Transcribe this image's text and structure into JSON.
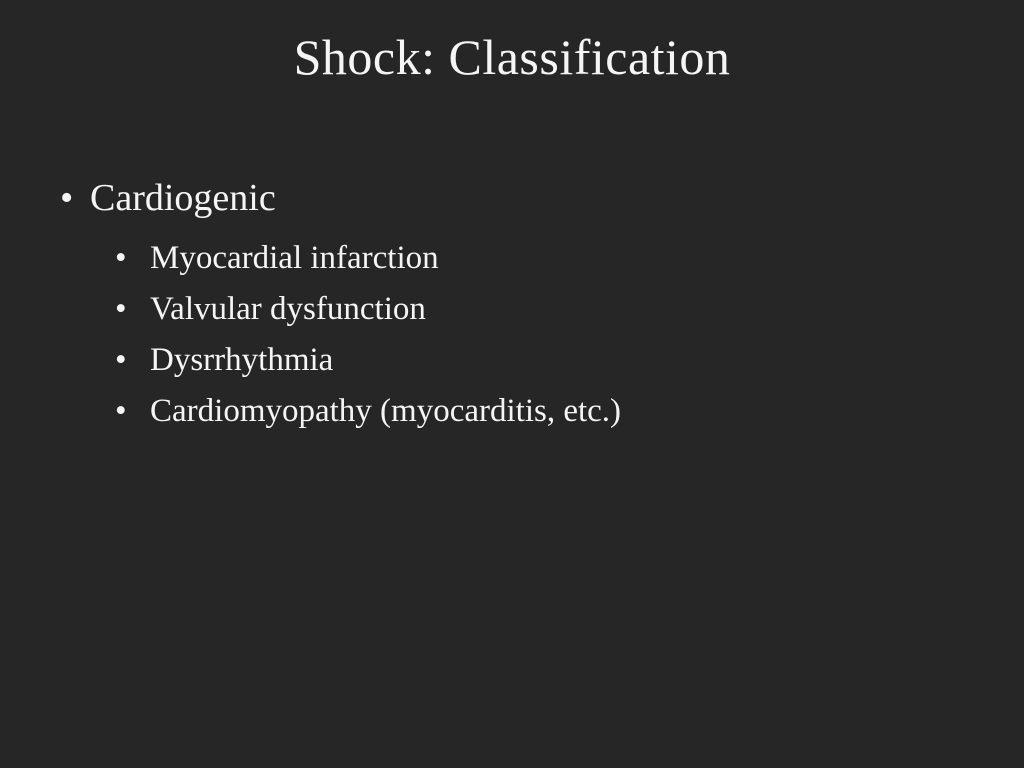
{
  "slide": {
    "title": "Shock: Classification",
    "background_color": "#262626",
    "text_color": "#f5f5f5",
    "title_fontsize": 50,
    "level1_fontsize": 38,
    "level2_fontsize": 33,
    "font_family": "Garamond, Georgia, serif",
    "bullets": {
      "level1": {
        "label": "Cardiogenic"
      },
      "level2": [
        {
          "label": "Myocardial infarction"
        },
        {
          "label": "Valvular dysfunction"
        },
        {
          "label": "Dysrrhythmia"
        },
        {
          "label": "Cardiomyopathy (myocarditis, etc.)"
        }
      ]
    }
  }
}
